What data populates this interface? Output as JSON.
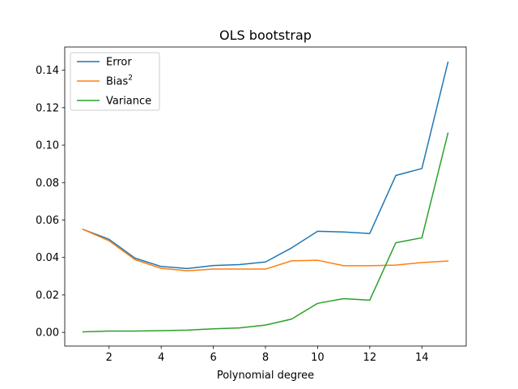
{
  "chart_data": {
    "type": "line",
    "title": "OLS bootstrap",
    "xlabel": "Polynomial degree",
    "ylabel": "",
    "xlim": [
      0.3,
      15.7
    ],
    "ylim": [
      -0.0073,
      0.1524
    ],
    "xticks": [
      2,
      4,
      6,
      8,
      10,
      12,
      14
    ],
    "yticks": [
      0.0,
      0.02,
      0.04,
      0.06,
      0.08,
      0.1,
      0.12,
      0.14
    ],
    "ytick_labels": [
      "0.00",
      "0.02",
      "0.04",
      "0.06",
      "0.08",
      "0.10",
      "0.12",
      "0.14"
    ],
    "grid": false,
    "legend_position": "top-left",
    "x": [
      1,
      2,
      3,
      4,
      5,
      6,
      7,
      8,
      9,
      10,
      11,
      12,
      13,
      14,
      15
    ],
    "series": [
      {
        "name": "Error",
        "color": "#1f77b4",
        "values": [
          0.055,
          0.0497,
          0.0396,
          0.0352,
          0.0341,
          0.0357,
          0.0362,
          0.0376,
          0.0451,
          0.054,
          0.0536,
          0.0528,
          0.0838,
          0.0875,
          0.1443
        ]
      },
      {
        "name": "Bias",
        "name_sup": "2",
        "color": "#ff7f0e",
        "values": [
          0.055,
          0.0489,
          0.0388,
          0.0342,
          0.0329,
          0.0338,
          0.0338,
          0.0338,
          0.0382,
          0.0385,
          0.0356,
          0.0356,
          0.0359,
          0.0373,
          0.0381
        ]
      },
      {
        "name": "Variance",
        "color": "#2ca02c",
        "values": [
          0.0003,
          0.0007,
          0.0007,
          0.0009,
          0.0012,
          0.0019,
          0.0024,
          0.0039,
          0.0071,
          0.0155,
          0.018,
          0.0172,
          0.0479,
          0.0505,
          0.1064
        ]
      }
    ]
  }
}
